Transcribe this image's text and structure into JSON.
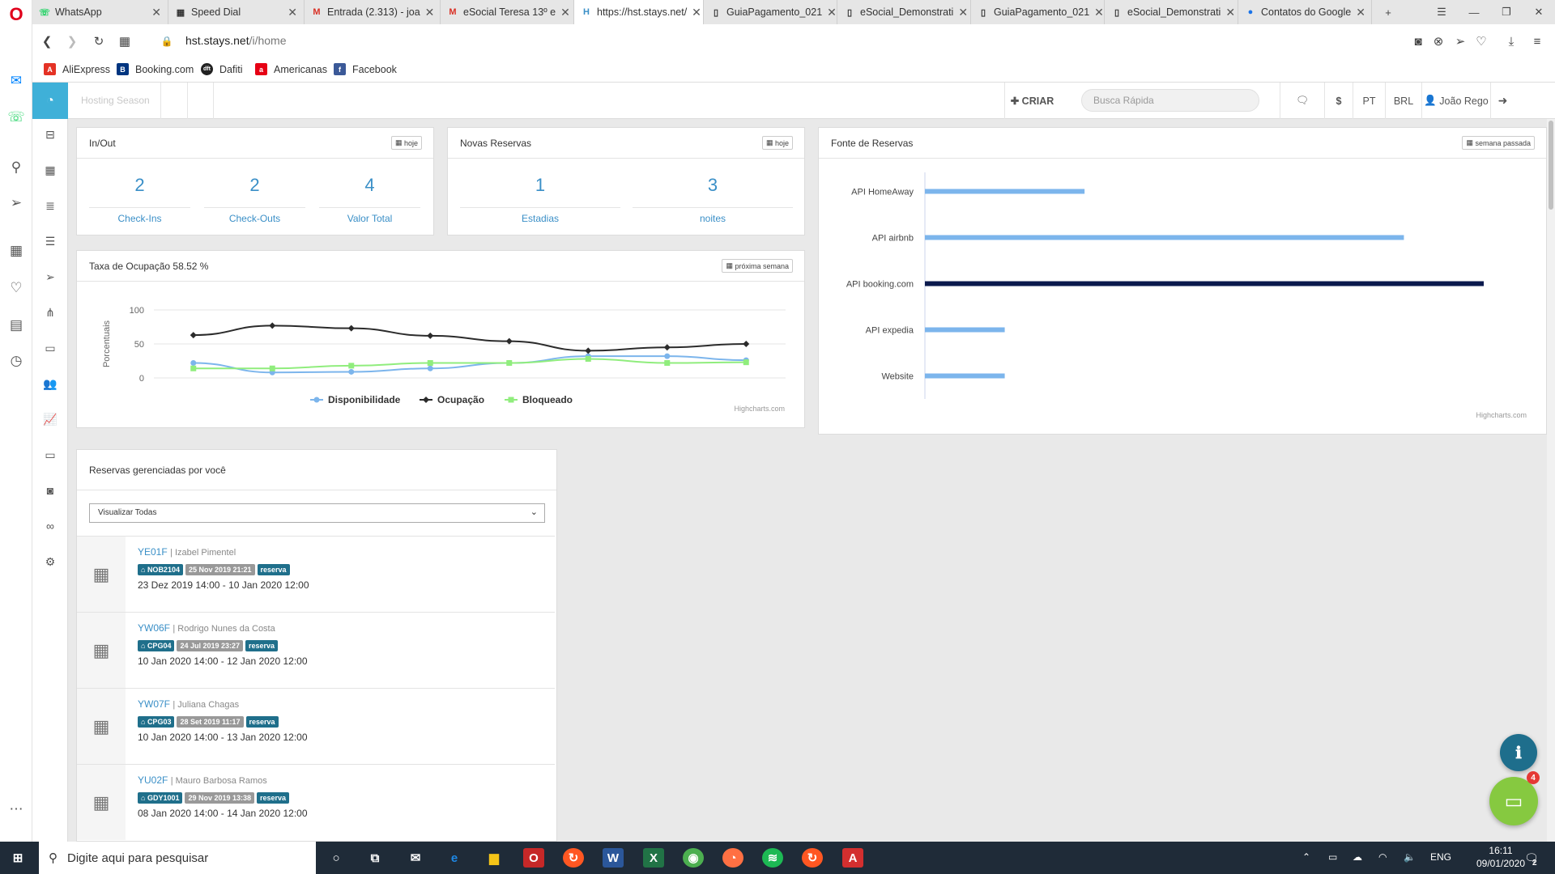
{
  "browser": {
    "tabs": [
      {
        "label": "WhatsApp",
        "icon": "whatsapp-icon"
      },
      {
        "label": "Speed Dial",
        "icon": "speed-dial-icon"
      },
      {
        "label": "Entrada (2.313) - joa",
        "icon": "gmail-icon"
      },
      {
        "label": "eSocial Teresa 13º e",
        "icon": "gmail-icon"
      },
      {
        "label": "https://hst.stays.net/",
        "icon": "stays-icon",
        "active": true
      },
      {
        "label": "GuiaPagamento_021",
        "icon": "document-icon"
      },
      {
        "label": "eSocial_Demonstrati",
        "icon": "document-icon"
      },
      {
        "label": "GuiaPagamento_021",
        "icon": "document-icon"
      },
      {
        "label": "eSocial_Demonstrati",
        "icon": "document-icon"
      },
      {
        "label": "Contatos do Google",
        "icon": "google-contacts-icon"
      }
    ],
    "url_host": "hst.stays.net",
    "url_path": "/i/home",
    "bookmarks": [
      {
        "label": "AliExpress",
        "color": "#e43225",
        "glyph": "A"
      },
      {
        "label": "Booking.com",
        "color": "#003580",
        "glyph": "B"
      },
      {
        "label": "Dafiti",
        "color": "#222222",
        "glyph": "dft"
      },
      {
        "label": "Americanas",
        "color": "#e60014",
        "glyph": "a"
      },
      {
        "label": "Facebook",
        "color": "#3b5998",
        "glyph": "f"
      }
    ]
  },
  "header": {
    "season": "Hosting Season",
    "create": "CRIAR",
    "search_placeholder": "Busca Rápida",
    "currency_symbol": "$",
    "language": "PT",
    "currency": "BRL",
    "user": "João Rego"
  },
  "inout": {
    "title": "In/Out",
    "button": "hoje",
    "stats": [
      {
        "value": "2",
        "label": "Check-Ins"
      },
      {
        "value": "2",
        "label": "Check-Outs"
      },
      {
        "value": "4",
        "label": "Valor Total"
      }
    ]
  },
  "novas": {
    "title": "Novas Reservas",
    "button": "hoje",
    "stats": [
      {
        "value": "1",
        "label": "Estadias"
      },
      {
        "value": "3",
        "label": "noites"
      }
    ]
  },
  "fonte": {
    "title": "Fonte de Reservas",
    "button": "semana passada",
    "credit": "Highcharts.com"
  },
  "taxa": {
    "title": "Taxa de Ocupação 58.52 %",
    "button": "próxima semana",
    "credit": "Highcharts.com"
  },
  "chart_data": [
    {
      "type": "line",
      "title": "Taxa de Ocupação 58.52 %",
      "ylabel": "Porcentuais",
      "ylim": [
        0,
        100
      ],
      "yticks": [
        "100",
        "50",
        "0"
      ],
      "legend": "bottom-center",
      "series": [
        {
          "name": "Disponibilidade",
          "color": "#7cb5ec",
          "values": [
            22,
            8,
            9,
            14,
            22,
            32,
            32,
            26
          ]
        },
        {
          "name": "Ocupação",
          "color": "#2b2b2b",
          "values": [
            63,
            77,
            73,
            62,
            54,
            40,
            45,
            50
          ]
        },
        {
          "name": "Bloqueado",
          "color": "#90ed7d",
          "values": [
            14,
            14,
            18,
            22,
            22,
            28,
            22,
            23
          ]
        }
      ]
    },
    {
      "type": "bar",
      "title": "Fonte de Reservas",
      "legend": "none",
      "categories": [
        "API HomeAway",
        "API airbnb",
        "API booking.com",
        "API expedia",
        "Website"
      ],
      "values": [
        2,
        6,
        7,
        1,
        1
      ],
      "colors": [
        "#7cb5ec",
        "#7cb5ec",
        "#0b1a4d",
        "#7cb5ec",
        "#7cb5ec"
      ]
    }
  ],
  "reservas": {
    "title": "Reservas gerenciadas por você",
    "filter": "Visualizar Todas",
    "items": [
      {
        "code": "YE01F",
        "guest": "| Izabel Pimentel",
        "unit": "NOB2104",
        "created": "25 Nov 2019 21:21",
        "type": "reserva",
        "dates": "23 Dez 2019 14:00 - 10 Jan 2020 12:00"
      },
      {
        "code": "YW06F",
        "guest": "| Rodrigo Nunes da Costa",
        "unit": "CPG04",
        "created": "24 Jul 2019 23:27",
        "type": "reserva",
        "dates": "10 Jan 2020 14:00 - 12 Jan 2020 12:00"
      },
      {
        "code": "YW07F",
        "guest": "| Juliana Chagas",
        "unit": "CPG03",
        "created": "28 Set 2019 11:17",
        "type": "reserva",
        "dates": "10 Jan 2020 14:00 - 13 Jan 2020 12:00"
      },
      {
        "code": "YU02F",
        "guest": "| Mauro Barbosa Ramos",
        "unit": "GDY1001",
        "created": "29 Nov 2019 13:38",
        "type": "reserva",
        "dates": "08 Jan 2020 14:00 - 14 Jan 2020 12:00"
      }
    ]
  },
  "chat_badge": "4",
  "taskbar": {
    "search_placeholder": "Digite aqui para pesquisar",
    "lang": "ENG",
    "time": "16:11",
    "date": "09/01/2020",
    "notif": "2"
  }
}
